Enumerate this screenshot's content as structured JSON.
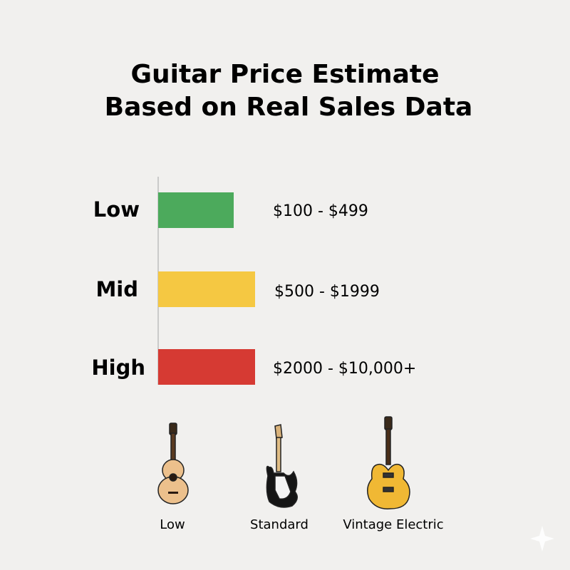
{
  "header": {
    "title_lines": [
      "Guitar Price Estimate",
      "Based on Real Sales Data"
    ]
  },
  "rows": [
    {
      "label": "Low",
      "range": "$100 - $499"
    },
    {
      "label": "Mid",
      "range": "$500 - $1999"
    },
    {
      "label": "High",
      "range": "$2000 - $10,000+"
    }
  ],
  "icons": [
    {
      "caption": "Low"
    },
    {
      "caption": "Standard"
    },
    {
      "caption": "Vintage Electric"
    }
  ]
}
